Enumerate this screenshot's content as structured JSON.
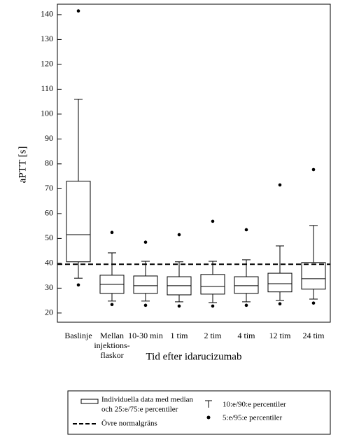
{
  "chart_data": {
    "type": "box",
    "x_label": "Tid efter idarucizumab",
    "y_label": "aPTT [s]",
    "categories": [
      "Baslinje",
      [
        "Mellan",
        "injektions-",
        "flaskor"
      ],
      "10-30 min",
      "1 tim",
      "2 tim",
      "4 tim",
      "12 tim",
      "24 tim"
    ],
    "p5": [
      31.3,
      23.4,
      23.1,
      22.8,
      22.8,
      23.1,
      23.7,
      24.0
    ],
    "p10": [
      34.0,
      24.8,
      24.8,
      24.5,
      24.2,
      24.5,
      25.1,
      25.6
    ],
    "q1": [
      40.6,
      27.9,
      27.9,
      27.3,
      27.6,
      27.9,
      28.5,
      29.6
    ],
    "median": [
      51.5,
      31.5,
      31.0,
      31.0,
      30.7,
      31.0,
      31.8,
      33.8
    ],
    "q3": [
      73.0,
      35.2,
      34.9,
      34.6,
      35.5,
      34.6,
      36.0,
      40.3
    ],
    "p90": [
      106.0,
      44.2,
      40.8,
      40.6,
      40.8,
      41.4,
      47.0,
      55.2
    ],
    "p95": [
      141.5,
      52.4,
      48.5,
      51.5,
      56.9,
      53.5,
      71.5,
      77.7
    ],
    "reference_line": 39.6,
    "ylim": [
      16.3,
      144.2
    ],
    "yticks": [
      20,
      30,
      40,
      50,
      60,
      70,
      80,
      90,
      100,
      110,
      120,
      130,
      140
    ],
    "legend": {
      "box": [
        "Individuella data med median",
        "och 25:e/75:e percentiler"
      ],
      "reference": "Övre normalgräns",
      "whisker": "10:e/90:e percentiler",
      "dots": "5:e/95:e percentiler"
    }
  }
}
